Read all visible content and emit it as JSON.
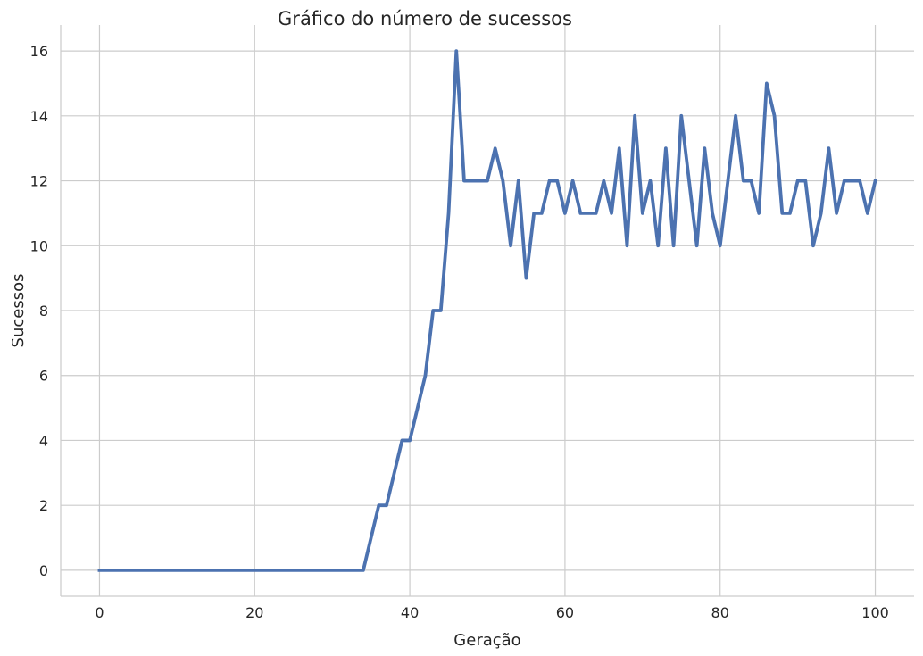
{
  "chart_data": {
    "type": "line",
    "title": "Gráfico do número de sucessos",
    "xlabel": "Geração",
    "ylabel": "Sucessos",
    "xlim": [
      -5,
      105
    ],
    "ylim": [
      -0.8,
      16.8
    ],
    "xticks": [
      "0",
      "20",
      "40",
      "60",
      "80",
      "100"
    ],
    "yticks": [
      "0",
      "2",
      "4",
      "6",
      "8",
      "10",
      "12",
      "14",
      "16"
    ],
    "grid": true,
    "colors": {
      "line": "#4c72b0",
      "grid": "#cccccc",
      "spine": "#cccccc",
      "text": "#262626"
    },
    "series": [
      {
        "x": [
          0,
          1,
          2,
          3,
          4,
          5,
          6,
          7,
          8,
          9,
          10,
          11,
          12,
          13,
          14,
          15,
          16,
          17,
          18,
          19,
          20,
          21,
          22,
          23,
          24,
          25,
          26,
          27,
          28,
          29,
          30,
          31,
          32,
          33,
          34,
          35,
          36,
          37,
          38,
          39,
          40,
          41,
          42,
          43,
          44,
          45,
          46,
          47,
          48,
          49,
          50,
          51,
          52,
          53,
          54,
          55,
          56,
          57,
          58,
          59,
          60,
          61,
          62,
          63,
          64,
          65,
          66,
          67,
          68,
          69,
          70,
          71,
          72,
          73,
          74,
          75,
          76,
          77,
          78,
          79,
          80,
          81,
          82,
          83,
          84,
          85,
          86,
          87,
          88,
          89,
          90,
          91,
          92,
          93,
          94,
          95,
          96,
          97,
          98,
          99,
          100
        ],
        "values": [
          0,
          0,
          0,
          0,
          0,
          0,
          0,
          0,
          0,
          0,
          0,
          0,
          0,
          0,
          0,
          0,
          0,
          0,
          0,
          0,
          0,
          0,
          0,
          0,
          0,
          0,
          0,
          0,
          0,
          0,
          0,
          0,
          0,
          0,
          0,
          1,
          2,
          2,
          3,
          4,
          4,
          5,
          6,
          8,
          8,
          11,
          16,
          12,
          12,
          12,
          12,
          13,
          12,
          10,
          12,
          9,
          11,
          11,
          12,
          12,
          11,
          12,
          11,
          11,
          11,
          12,
          11,
          13,
          10,
          14,
          11,
          12,
          10,
          13,
          10,
          14,
          12,
          10,
          13,
          11,
          10,
          12,
          14,
          12,
          12,
          11,
          15,
          14,
          11,
          11,
          12,
          12,
          10,
          11,
          13,
          11,
          12,
          12,
          12,
          11,
          12
        ]
      }
    ]
  }
}
